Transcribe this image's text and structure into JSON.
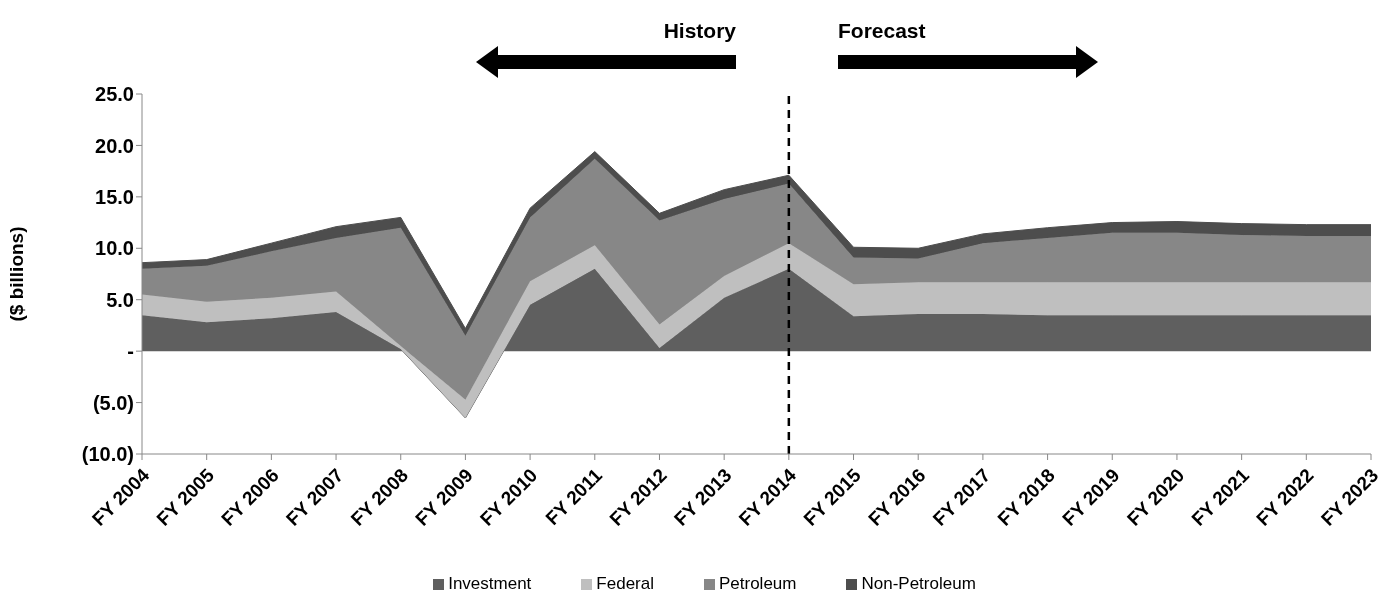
{
  "chart_data": {
    "type": "area",
    "stacked": true,
    "ylabel": "($ billions)",
    "categories": [
      "FY 2004",
      "FY 2005",
      "FY 2006",
      "FY 2007",
      "FY 2008",
      "FY 2009",
      "FY 2010",
      "FY 2011",
      "FY 2012",
      "FY 2013",
      "FY 2014",
      "FY 2015",
      "FY 2016",
      "FY 2017",
      "FY 2018",
      "FY 2019",
      "FY 2020",
      "FY 2021",
      "FY 2022",
      "FY 2023"
    ],
    "series": [
      {
        "name": "Investment",
        "color": "#5f5f5f",
        "values": [
          3.5,
          2.8,
          3.2,
          3.8,
          0.2,
          -6.5,
          4.5,
          8.0,
          0.3,
          5.2,
          8.0,
          3.4,
          3.6,
          3.6,
          3.5,
          3.5,
          3.5,
          3.5,
          3.5,
          3.5
        ]
      },
      {
        "name": "Federal",
        "color": "#bfbfbf",
        "values": [
          2.0,
          2.0,
          2.0,
          2.0,
          0.3,
          1.8,
          2.3,
          2.3,
          2.3,
          2.1,
          2.5,
          3.1,
          3.1,
          3.1,
          3.2,
          3.2,
          3.2,
          3.2,
          3.2,
          3.2
        ]
      },
      {
        "name": "Petroleum",
        "color": "#878787",
        "values": [
          2.5,
          3.5,
          4.5,
          5.2,
          11.5,
          6.2,
          6.2,
          8.4,
          10.1,
          7.5,
          5.8,
          2.6,
          2.3,
          3.8,
          4.3,
          4.8,
          4.8,
          4.6,
          4.5,
          4.5
        ]
      },
      {
        "name": "Non-Petroleum",
        "color": "#4d4d4d",
        "values": [
          0.6,
          0.6,
          0.8,
          1.1,
          1.0,
          0.7,
          0.9,
          0.7,
          0.7,
          0.9,
          0.8,
          1.0,
          1.0,
          0.9,
          1.0,
          1.0,
          1.1,
          1.1,
          1.1,
          1.1
        ]
      }
    ],
    "ylim": [
      -10,
      25
    ],
    "yticks": [
      {
        "value": -10,
        "label": "(10.0)"
      },
      {
        "value": -5,
        "label": "(5.0)"
      },
      {
        "value": 0,
        "label": "-"
      },
      {
        "value": 5,
        "label": "5.0"
      },
      {
        "value": 10,
        "label": "10.0"
      },
      {
        "value": 15,
        "label": "15.0"
      },
      {
        "value": 20,
        "label": "20.0"
      },
      {
        "value": 25,
        "label": "25.0"
      }
    ],
    "ref_lines": [
      {
        "axis": "x",
        "value": "FY 2014",
        "line_style": "dashed",
        "color": "#000000"
      }
    ],
    "annotations": [
      "History",
      "Forecast"
    ],
    "grid": false,
    "legend": "bottom"
  }
}
